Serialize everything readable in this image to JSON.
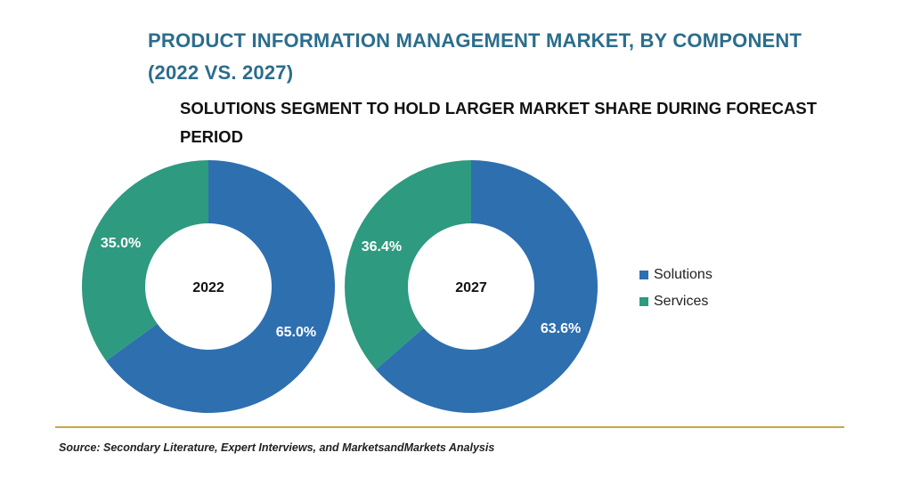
{
  "title": {
    "line1": "PRODUCT INFORMATION MANAGEMENT MARKET, BY COMPONENT",
    "line2": "(2022 VS. 2027)"
  },
  "subtitle": {
    "line1": "SOLUTIONS SEGMENT TO HOLD LARGER MARKET SHARE DURING FORECAST",
    "line2": "PERIOD"
  },
  "colors": {
    "solutions": "#2e6fb0",
    "services": "#2e9a7f"
  },
  "chart_data": [
    {
      "type": "pie",
      "style": "donut",
      "center_label": "2022",
      "categories": [
        "Solutions",
        "Services"
      ],
      "values": [
        65.0,
        35.0
      ],
      "labels": [
        "65.0%",
        "35.0%"
      ]
    },
    {
      "type": "pie",
      "style": "donut",
      "center_label": "2027",
      "categories": [
        "Solutions",
        "Services"
      ],
      "values": [
        63.6,
        36.4
      ],
      "labels": [
        "63.6%",
        "36.4%"
      ]
    }
  ],
  "legend": {
    "items": [
      {
        "label": "Solutions",
        "color": "#2e6fb0"
      },
      {
        "label": "Services",
        "color": "#2e9a7f"
      }
    ]
  },
  "source": "Source: Secondary Literature, Expert Interviews, and MarketsandMarkets Analysis"
}
